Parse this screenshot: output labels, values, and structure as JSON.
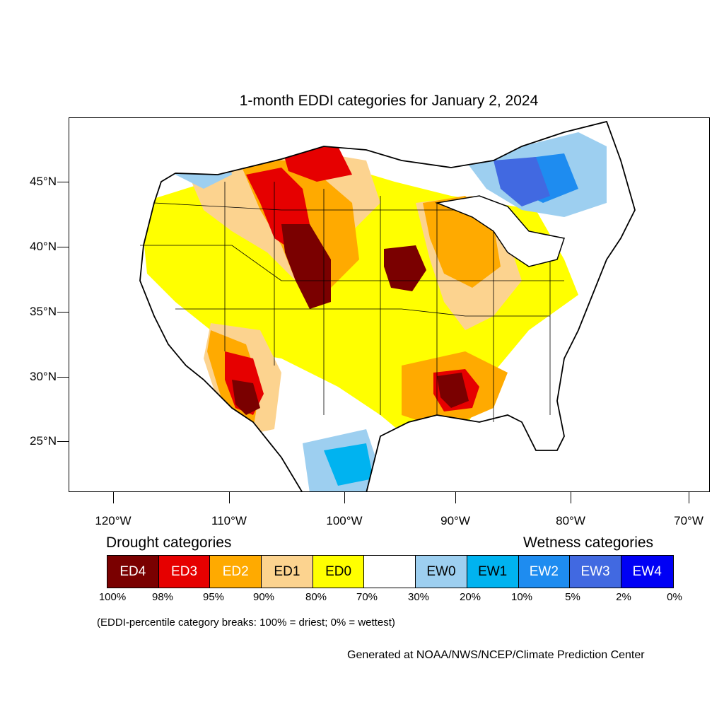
{
  "title": "1-month EDDI categories for January 2, 2024",
  "map": {
    "lat_labels": [
      "45°N",
      "40°N",
      "35°N",
      "30°N",
      "25°N"
    ],
    "lon_labels": [
      "120°W",
      "110°W",
      "100°W",
      "90°W",
      "80°W",
      "70°W"
    ],
    "land_color": "#ffffff",
    "border_color": "#000000"
  },
  "legend": {
    "drought_heading": "Drought categories",
    "wetness_heading": "Wetness categories",
    "categories": [
      {
        "label": "ED4",
        "color": "#7a0000",
        "text_color": "#ffffff"
      },
      {
        "label": "ED3",
        "color": "#e60000",
        "text_color": "#ffffff"
      },
      {
        "label": "ED2",
        "color": "#ffaa00",
        "text_color": "#ffffff"
      },
      {
        "label": "ED1",
        "color": "#fcd38f",
        "text_color": "#000000"
      },
      {
        "label": "ED0",
        "color": "#ffff00",
        "text_color": "#000000"
      },
      {
        "label": "",
        "color": "#ffffff",
        "text_color": "#000000"
      },
      {
        "label": "EW0",
        "color": "#9dcff0",
        "text_color": "#000000"
      },
      {
        "label": "EW1",
        "color": "#00b3f0",
        "text_color": "#000000"
      },
      {
        "label": "EW2",
        "color": "#1e8cf0",
        "text_color": "#ffffff"
      },
      {
        "label": "EW3",
        "color": "#4169e1",
        "text_color": "#ffffff"
      },
      {
        "label": "EW4",
        "color": "#0000f5",
        "text_color": "#ffffff"
      }
    ],
    "percent_breaks": [
      "100%",
      "98%",
      "95%",
      "90%",
      "80%",
      "70%",
      "30%",
      "20%",
      "10%",
      "5%",
      "2%",
      "0%"
    ]
  },
  "note": "(EDDI-percentile category breaks: 100% = driest; 0% = wettest)",
  "credit": "Generated at NOAA/NWS/NCEP/Climate Prediction Center"
}
